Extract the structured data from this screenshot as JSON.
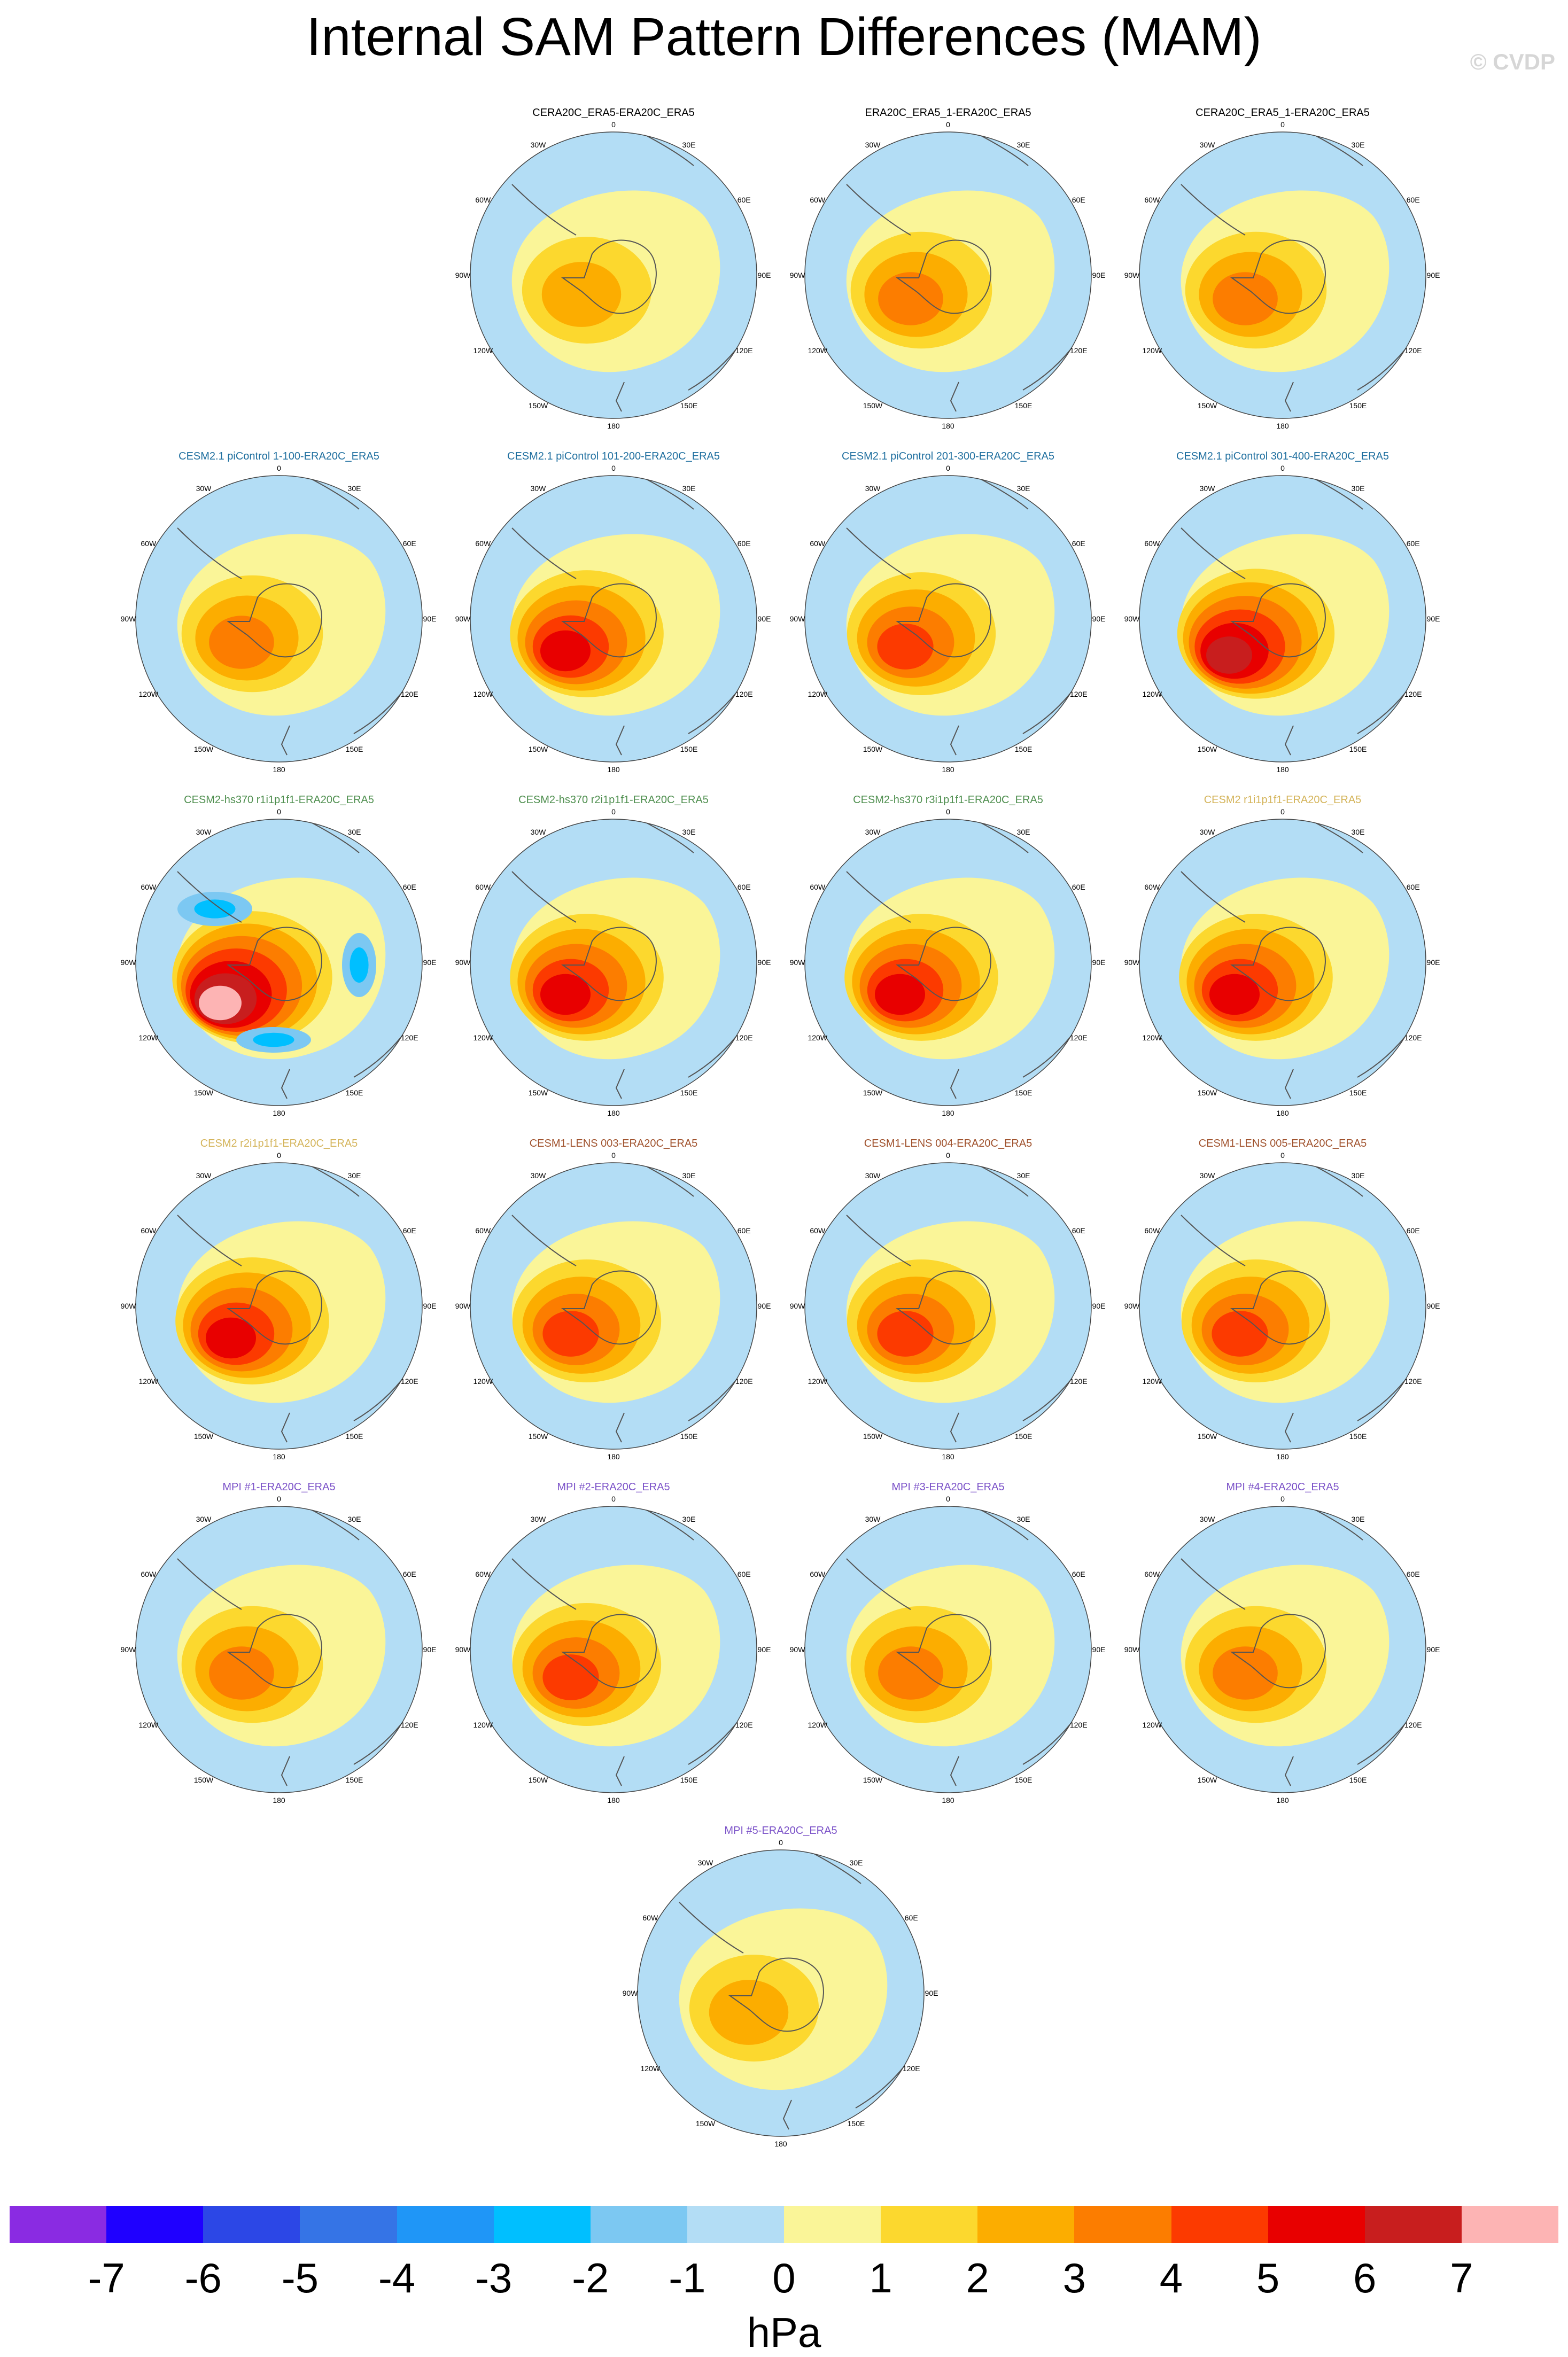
{
  "title": "Internal SAM Pattern Differences (MAM)",
  "watermark": "© CVDP",
  "units": "hPa",
  "colorbar": {
    "colors": [
      "#8a2be2",
      "#1f00ff",
      "#2c47e6",
      "#3574e6",
      "#1f96f7",
      "#00bfff",
      "#7cc8f2",
      "#b3ddf5",
      "#faf598",
      "#fcd82e",
      "#fcad00",
      "#fc7d00",
      "#fc3a00",
      "#e80000",
      "#c81e1e",
      "#fdb4b4"
    ],
    "labels": [
      "-7",
      "-6",
      "-5",
      "-4",
      "-3",
      "-2",
      "-1",
      "0",
      "1",
      "2",
      "3",
      "4",
      "5",
      "6",
      "7"
    ]
  },
  "lon_labels": [
    "0",
    "30E",
    "60E",
    "90E",
    "120E",
    "150E",
    "180",
    "150W",
    "120W",
    "90W",
    "60W",
    "30W"
  ],
  "panels": [
    {
      "title": "CERA20C_ERA5-ERA20C_ERA5",
      "color": "#000000",
      "peak": 2,
      "neg": false
    },
    {
      "title": "ERA20C_ERA5_1-ERA20C_ERA5",
      "color": "#000000",
      "peak": 3,
      "neg": false
    },
    {
      "title": "CERA20C_ERA5_1-ERA20C_ERA5",
      "color": "#000000",
      "peak": 3,
      "neg": false
    },
    {
      "title": "CESM2.1 piControl 1-100-ERA20C_ERA5",
      "color": "#1f6f9f",
      "peak": 3,
      "neg": false
    },
    {
      "title": "CESM2.1 piControl 101-200-ERA20C_ERA5",
      "color": "#1f6f9f",
      "peak": 5,
      "neg": false
    },
    {
      "title": "CESM2.1 piControl 201-300-ERA20C_ERA5",
      "color": "#1f6f9f",
      "peak": 4,
      "neg": false
    },
    {
      "title": "CESM2.1 piControl 301-400-ERA20C_ERA5",
      "color": "#1f6f9f",
      "peak": 6,
      "neg": false
    },
    {
      "title": "CESM2-hs370 r1i1p1f1-ERA20C_ERA5",
      "color": "#4f8f4f",
      "peak": 7,
      "neg": true
    },
    {
      "title": "CESM2-hs370 r2i1p1f1-ERA20C_ERA5",
      "color": "#4f8f4f",
      "peak": 5,
      "neg": false
    },
    {
      "title": "CESM2-hs370 r3i1p1f1-ERA20C_ERA5",
      "color": "#4f8f4f",
      "peak": 5,
      "neg": false
    },
    {
      "title": "CESM2 r1i1p1f1-ERA20C_ERA5",
      "color": "#d4b45a",
      "peak": 5,
      "neg": false
    },
    {
      "title": "CESM2 r2i1p1f1-ERA20C_ERA5",
      "color": "#d4b45a",
      "peak": 5,
      "neg": false
    },
    {
      "title": "CESM1-LENS 003-ERA20C_ERA5",
      "color": "#a0522d",
      "peak": 4,
      "neg": false
    },
    {
      "title": "CESM1-LENS 004-ERA20C_ERA5",
      "color": "#a0522d",
      "peak": 4,
      "neg": false
    },
    {
      "title": "CESM1-LENS 005-ERA20C_ERA5",
      "color": "#a0522d",
      "peak": 4,
      "neg": false
    },
    {
      "title": "MPI #1-ERA20C_ERA5",
      "color": "#7b52c8",
      "peak": 3,
      "neg": false
    },
    {
      "title": "MPI #2-ERA20C_ERA5",
      "color": "#7b52c8",
      "peak": 4,
      "neg": false
    },
    {
      "title": "MPI #3-ERA20C_ERA5",
      "color": "#7b52c8",
      "peak": 3,
      "neg": false
    },
    {
      "title": "MPI #4-ERA20C_ERA5",
      "color": "#7b52c8",
      "peak": 3,
      "neg": false
    },
    {
      "title": "MPI #5-ERA20C_ERA5",
      "color": "#7b52c8",
      "peak": 2,
      "neg": false
    }
  ]
}
